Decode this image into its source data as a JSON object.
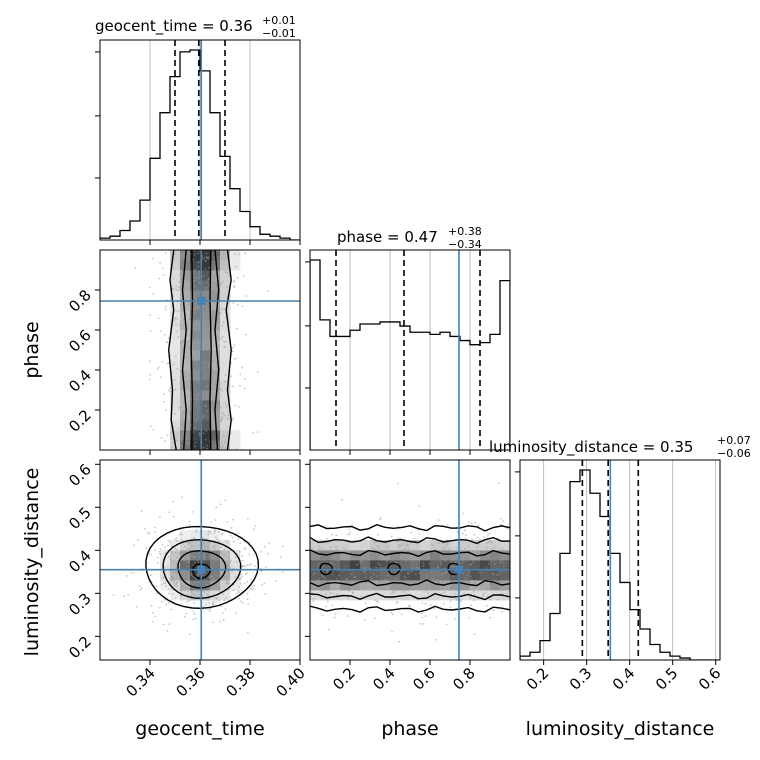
{
  "chart_data": {
    "type": "corner",
    "parameters": [
      {
        "id": "geocent_time",
        "label": "geocent_time",
        "range": [
          0.32,
          0.4
        ],
        "title_main": "geocent_time = 0.36",
        "title_sup": "+0.01",
        "title_sub": "−0.01",
        "quantiles": [
          0.35,
          0.3595,
          0.37
        ],
        "truth": 0.3605
      },
      {
        "id": "phase",
        "label": "phase",
        "range": [
          0.0,
          1.0
        ],
        "title_main": "phase = 0.47",
        "title_sup": "+0.38",
        "title_sub": "−0.34",
        "quantiles": [
          0.13,
          0.47,
          0.85
        ],
        "truth": 0.745
      },
      {
        "id": "luminosity_distance",
        "label": "luminosity_distance",
        "range": [
          0.145,
          0.61
        ],
        "title_main": "luminosity_distance = 0.35",
        "title_sup": "+0.07",
        "title_sub": "−0.06",
        "quantiles": [
          0.29,
          0.35,
          0.42
        ],
        "truth": 0.355
      }
    ],
    "ticks": {
      "geocent_time": [
        "0.34",
        "0.36",
        "0.38",
        "0.40"
      ],
      "phase_x": [
        "0.2",
        "0.4",
        "0.6",
        "0.8"
      ],
      "phase_y": [
        "0.2",
        "0.4",
        "0.6",
        "0.8"
      ],
      "luminosity_distance_x": [
        "0.2",
        "0.3",
        "0.4",
        "0.5",
        "0.6"
      ],
      "luminosity_distance_y": [
        "0.2",
        "0.3",
        "0.4",
        "0.5",
        "0.6"
      ]
    },
    "histograms": {
      "geocent_time": {
        "edges_start": 0.32,
        "bin_width": 0.004,
        "counts": [
          0.01,
          0.02,
          0.05,
          0.1,
          0.21,
          0.43,
          0.67,
          0.86,
          0.99,
          1.0,
          0.89,
          0.67,
          0.44,
          0.27,
          0.15,
          0.07,
          0.03,
          0.02,
          0.01,
          0.0
        ]
      },
      "phase": {
        "edges_start": 0.0,
        "bin_width": 0.05,
        "counts": [
          0.92,
          0.63,
          0.55,
          0.55,
          0.58,
          0.61,
          0.61,
          0.62,
          0.62,
          0.6,
          0.57,
          0.57,
          0.56,
          0.57,
          0.55,
          0.53,
          0.51,
          0.52,
          0.56,
          0.82
        ]
      },
      "luminosity_distance": {
        "edges_start": 0.145,
        "bin_width": 0.02325,
        "counts": [
          0.02,
          0.04,
          0.1,
          0.24,
          0.55,
          0.92,
          0.98,
          0.86,
          0.74,
          0.55,
          0.4,
          0.26,
          0.16,
          0.08,
          0.04,
          0.02,
          0.01,
          0.0,
          0.0,
          0.0
        ]
      }
    },
    "colors": {
      "truth": "#4682b4",
      "hist": "#000000",
      "contour": "#000000",
      "points": "#9a9a9a"
    }
  }
}
